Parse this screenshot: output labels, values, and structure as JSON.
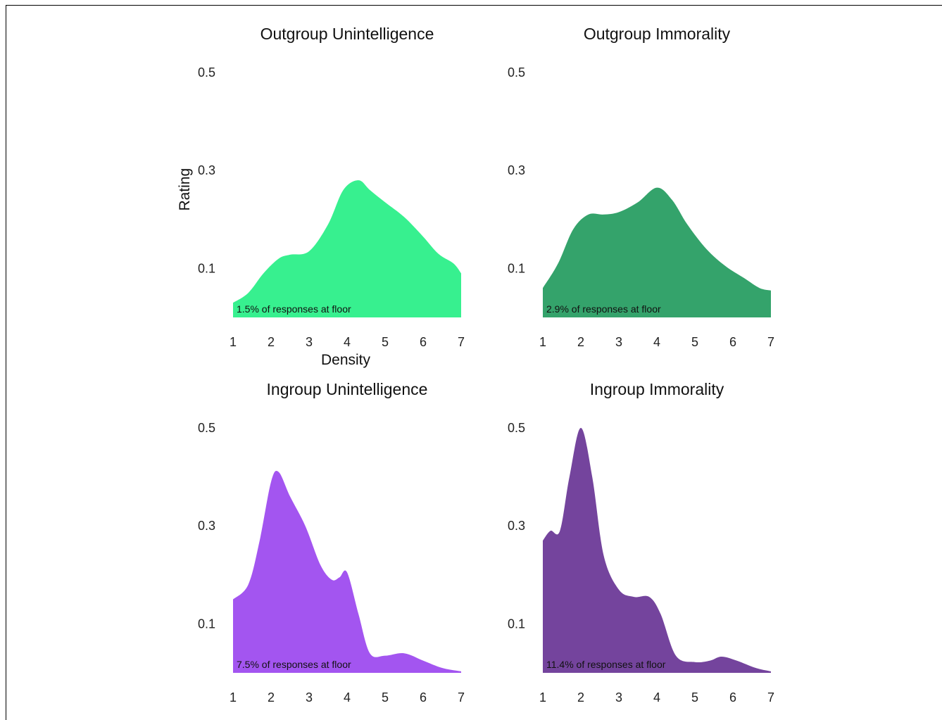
{
  "chart_data": [
    {
      "type": "area",
      "title": "Outgroup Unintelligence",
      "xlabel": "Density",
      "ylabel": "Rating",
      "xlim": [
        1,
        7
      ],
      "ylim": [
        0,
        0.5
      ],
      "xticks": [
        "1",
        "2",
        "3",
        "4",
        "5",
        "6",
        "7"
      ],
      "yticks": [
        "0.1",
        "0.3",
        "0.5"
      ],
      "color": "#37f08f",
      "annotation": "1.5% of responses at floor",
      "x": [
        1.0,
        1.4,
        1.8,
        2.2,
        2.5,
        3.0,
        3.5,
        3.9,
        4.3,
        4.6,
        5.0,
        5.5,
        6.0,
        6.4,
        6.8,
        7.0
      ],
      "y": [
        0.03,
        0.05,
        0.09,
        0.12,
        0.128,
        0.135,
        0.19,
        0.26,
        0.28,
        0.26,
        0.235,
        0.205,
        0.165,
        0.13,
        0.11,
        0.09
      ]
    },
    {
      "type": "area",
      "title": "Outgroup Immorality",
      "xlabel": "",
      "ylabel": "",
      "xlim": [
        1,
        7
      ],
      "ylim": [
        0,
        0.5
      ],
      "xticks": [
        "1",
        "2",
        "3",
        "4",
        "5",
        "6",
        "7"
      ],
      "yticks": [
        "0.1",
        "0.3",
        "0.5"
      ],
      "color": "#34a36b",
      "annotation": "2.9% of responses at floor",
      "x": [
        1.0,
        1.4,
        1.8,
        2.2,
        2.6,
        3.0,
        3.5,
        4.0,
        4.4,
        4.8,
        5.3,
        5.8,
        6.3,
        6.7,
        7.0
      ],
      "y": [
        0.06,
        0.11,
        0.18,
        0.21,
        0.21,
        0.215,
        0.235,
        0.265,
        0.24,
        0.19,
        0.14,
        0.105,
        0.08,
        0.06,
        0.055
      ]
    },
    {
      "type": "area",
      "title": "Ingroup Unintelligence",
      "xlabel": "",
      "ylabel": "",
      "xlim": [
        1,
        7
      ],
      "ylim": [
        0,
        0.5
      ],
      "xticks": [
        "1",
        "2",
        "3",
        "4",
        "5",
        "6",
        "7"
      ],
      "yticks": [
        "0.1",
        "0.3",
        "0.5"
      ],
      "color": "#a355f0",
      "annotation": "7.5% of responses at floor",
      "x": [
        1.0,
        1.4,
        1.7,
        2.0,
        2.2,
        2.5,
        2.9,
        3.3,
        3.6,
        3.8,
        4.0,
        4.3,
        4.6,
        5.0,
        5.5,
        6.0,
        6.5,
        7.0
      ],
      "y": [
        0.15,
        0.18,
        0.27,
        0.39,
        0.41,
        0.36,
        0.3,
        0.22,
        0.19,
        0.195,
        0.205,
        0.12,
        0.04,
        0.035,
        0.04,
        0.025,
        0.01,
        0.003
      ]
    },
    {
      "type": "area",
      "title": "Ingroup Immorality",
      "xlabel": "",
      "ylabel": "",
      "xlim": [
        1,
        7
      ],
      "ylim": [
        0,
        0.5
      ],
      "xticks": [
        "1",
        "2",
        "3",
        "4",
        "5",
        "6",
        "7"
      ],
      "yticks": [
        "0.1",
        "0.3",
        "0.5"
      ],
      "color": "#74449d",
      "annotation": "11.4% of responses at floor",
      "x": [
        1.0,
        1.2,
        1.45,
        1.7,
        2.0,
        2.3,
        2.6,
        3.0,
        3.4,
        3.8,
        4.1,
        4.5,
        5.0,
        5.4,
        5.7,
        6.1,
        6.6,
        7.0
      ],
      "y": [
        0.27,
        0.29,
        0.29,
        0.4,
        0.5,
        0.4,
        0.24,
        0.17,
        0.155,
        0.155,
        0.12,
        0.035,
        0.022,
        0.025,
        0.033,
        0.025,
        0.01,
        0.003
      ]
    }
  ]
}
